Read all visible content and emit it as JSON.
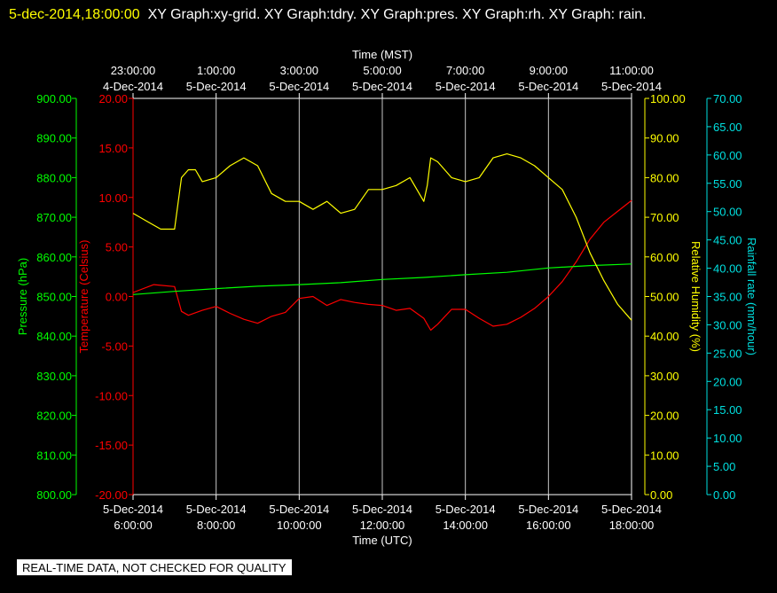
{
  "header": {
    "date_time": "5-dec-2014,18:00:00",
    "graphs_text": "XY Graph:xy-grid.  XY Graph:tdry.  XY Graph:pres.  XY Graph:rh.  XY Graph: rain."
  },
  "footer": {
    "note": "REAL-TIME DATA, NOT CHECKED FOR QUALITY"
  },
  "colors": {
    "temperature": "#ff0000",
    "pressure": "#00ff00",
    "humidity": "#ffff00",
    "rainfall": "#00e0e0",
    "grid": "#c8c8c8",
    "background": "#000000"
  },
  "chart_data": {
    "type": "line",
    "grid": true,
    "top_axis": {
      "title": "Time (MST)",
      "ticks": [
        [
          "23:00:00",
          "4-Dec-2014"
        ],
        [
          "1:00:00",
          "5-Dec-2014"
        ],
        [
          "3:00:00",
          "5-Dec-2014"
        ],
        [
          "5:00:00",
          "5-Dec-2014"
        ],
        [
          "7:00:00",
          "5-Dec-2014"
        ],
        [
          "9:00:00",
          "5-Dec-2014"
        ],
        [
          "11:00:00",
          "5-Dec-2014"
        ]
      ]
    },
    "bottom_axis": {
      "title": "Time (UTC)",
      "range": [
        "2014-12-05 06:00",
        "2014-12-05 18:00"
      ],
      "ticks": [
        [
          "5-Dec-2014",
          "6:00:00"
        ],
        [
          "5-Dec-2014",
          "8:00:00"
        ],
        [
          "5-Dec-2014",
          "10:00:00"
        ],
        [
          "5-Dec-2014",
          "12:00:00"
        ],
        [
          "5-Dec-2014",
          "14:00:00"
        ],
        [
          "5-Dec-2014",
          "16:00:00"
        ],
        [
          "5-Dec-2014",
          "18:00:00"
        ]
      ]
    },
    "y_axes": {
      "pressure": {
        "label": "Pressure (hPa)",
        "range": [
          800,
          900
        ],
        "ticks": [
          "900.00",
          "890.00",
          "880.00",
          "870.00",
          "860.00",
          "850.00",
          "840.00",
          "830.00",
          "820.00",
          "810.00",
          "800.00"
        ]
      },
      "temperature": {
        "label": "Temperature (Celsius)",
        "range": [
          -20,
          20
        ],
        "ticks": [
          "20.00",
          "15.00",
          "10.00",
          "5.00",
          "0.00",
          "-5.00",
          "-10.00",
          "-15.00",
          "-20.00"
        ]
      },
      "humidity": {
        "label": "Relative Humidity (%)",
        "range": [
          0,
          100
        ],
        "ticks": [
          "100.00",
          "90.00",
          "80.00",
          "70.00",
          "60.00",
          "50.00",
          "40.00",
          "30.00",
          "20.00",
          "10.00",
          "0.00"
        ]
      },
      "rainfall": {
        "label": "Rainfall rate (mm/hour)",
        "range": [
          0,
          70
        ],
        "ticks": [
          "70.00",
          "65.00",
          "60.00",
          "55.00",
          "50.00",
          "45.00",
          "40.00",
          "35.00",
          "30.00",
          "25.00",
          "20.00",
          "15.00",
          "10.00",
          "5.00",
          "0.00"
        ]
      }
    },
    "series": [
      {
        "axis": "temperature",
        "color": "#ff0000",
        "x": [
          "06:00",
          "06:30",
          "07:00",
          "07:10",
          "07:20",
          "07:40",
          "08:00",
          "08:20",
          "08:40",
          "09:00",
          "09:20",
          "09:40",
          "10:00",
          "10:20",
          "10:40",
          "11:00",
          "11:20",
          "11:40",
          "12:00",
          "12:20",
          "12:40",
          "13:00",
          "13:10",
          "13:20",
          "13:40",
          "14:00",
          "14:20",
          "14:40",
          "15:00",
          "15:20",
          "15:40",
          "16:00",
          "16:20",
          "16:40",
          "17:00",
          "17:20",
          "17:40",
          "18:00"
        ],
        "values": [
          0.4,
          1.2,
          1.0,
          -1.5,
          -1.9,
          -1.4,
          -1.0,
          -1.7,
          -2.3,
          -2.7,
          -2.0,
          -1.6,
          -0.2,
          0.0,
          -0.9,
          -0.3,
          -0.6,
          -0.8,
          -0.9,
          -1.4,
          -1.2,
          -2.2,
          -3.4,
          -2.8,
          -1.3,
          -1.3,
          -2.2,
          -3.0,
          -2.8,
          -2.1,
          -1.2,
          0.0,
          1.5,
          3.5,
          5.8,
          7.5,
          8.6,
          9.7
        ]
      },
      {
        "axis": "pressure",
        "color": "#00ff00",
        "x": [
          "06:00",
          "07:00",
          "08:00",
          "09:00",
          "10:00",
          "11:00",
          "12:00",
          "13:00",
          "14:00",
          "15:00",
          "16:00",
          "17:00",
          "18:00"
        ],
        "values": [
          850.5,
          851.3,
          852.0,
          852.6,
          853.0,
          853.5,
          854.3,
          854.8,
          855.5,
          856.1,
          857.2,
          857.8,
          858.2
        ]
      },
      {
        "axis": "humidity",
        "color": "#ffff00",
        "x": [
          "06:00",
          "06:20",
          "06:40",
          "07:00",
          "07:10",
          "07:20",
          "07:30",
          "07:40",
          "08:00",
          "08:20",
          "08:40",
          "09:00",
          "09:20",
          "09:40",
          "10:00",
          "10:20",
          "10:40",
          "11:00",
          "11:20",
          "11:40",
          "12:00",
          "12:20",
          "12:40",
          "13:00",
          "13:05",
          "13:10",
          "13:20",
          "13:40",
          "14:00",
          "14:20",
          "14:40",
          "15:00",
          "15:20",
          "15:40",
          "16:00",
          "16:20",
          "16:40",
          "17:00",
          "17:20",
          "17:40",
          "18:00"
        ],
        "values": [
          71,
          69,
          67,
          67,
          80,
          82,
          82,
          79,
          80,
          83,
          85,
          83,
          76,
          74,
          74,
          72,
          74,
          71,
          72,
          77,
          77,
          78,
          80,
          74,
          78,
          85,
          84,
          80,
          79,
          80,
          85,
          86,
          85,
          83,
          80,
          77,
          70,
          61,
          54,
          48,
          44
        ]
      },
      {
        "axis": "rainfall",
        "color": "#00e0e0",
        "x": [],
        "values": []
      }
    ]
  }
}
